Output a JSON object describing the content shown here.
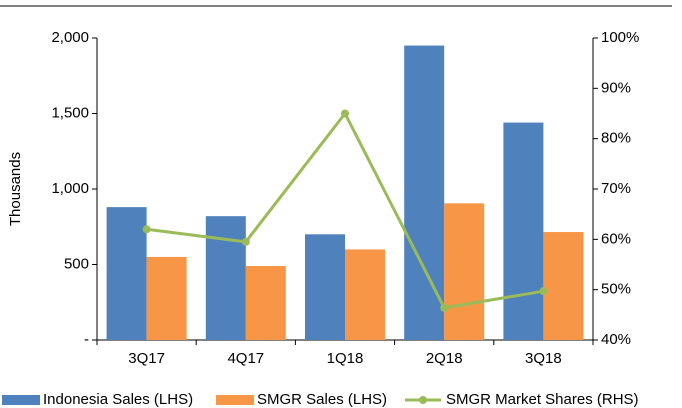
{
  "chart_data": {
    "type": "bar",
    "categories": [
      "3Q17",
      "4Q17",
      "1Q18",
      "2Q18",
      "3Q18"
    ],
    "ylabel": "Thousands",
    "ylim": [
      0,
      2000
    ],
    "yticks": [
      {
        "value": 0,
        "label": "-"
      },
      500,
      {
        "value": 1000,
        "label": "1,000"
      },
      {
        "value": 1500,
        "label": "1,500"
      },
      {
        "value": 2000,
        "label": "2,000"
      }
    ],
    "y2lim": [
      40,
      100
    ],
    "y2ticks": [
      {
        "value": 40,
        "label": "40%"
      },
      {
        "value": 50,
        "label": "50%"
      },
      {
        "value": 60,
        "label": "60%"
      },
      {
        "value": 70,
        "label": "70%"
      },
      {
        "value": 80,
        "label": "80%"
      },
      {
        "value": 90,
        "label": "90%"
      },
      {
        "value": 100,
        "label": "100%"
      }
    ],
    "series": [
      {
        "name": "Indonesia Sales (LHS)",
        "color": "#4f81bd",
        "values": [
          880,
          820,
          700,
          1950,
          1440
        ]
      },
      {
        "name": "SMGR Sales (LHS)",
        "color": "#f79646",
        "values": [
          550,
          490,
          600,
          905,
          715
        ]
      },
      {
        "name": "SMGR Market Shares (RHS)",
        "color": "#9bbb59",
        "type": "line",
        "axis": "y2",
        "values": [
          62,
          59.5,
          85,
          46.4,
          49.7
        ]
      }
    ],
    "legend": "bottom"
  }
}
